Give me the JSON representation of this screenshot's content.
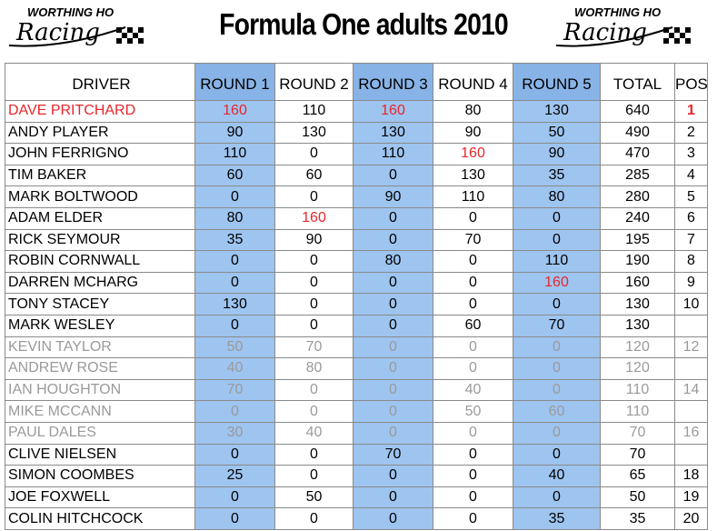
{
  "header": {
    "title": "Formula One adults 2010",
    "logo_top": "WORTHING HO",
    "logo_script": "Racing"
  },
  "table": {
    "columns": [
      "DRIVER",
      "ROUND 1",
      "ROUND 2",
      "ROUND 3",
      "ROUND 4",
      "ROUND 5",
      "TOTAL",
      "POS"
    ],
    "rows": [
      [
        "DAVE PRITCHARD",
        160,
        110,
        160,
        80,
        130,
        640,
        1
      ],
      [
        "ANDY PLAYER",
        90,
        130,
        130,
        90,
        50,
        490,
        2
      ],
      [
        "JOHN FERRIGNO",
        110,
        0,
        110,
        160,
        90,
        470,
        3
      ],
      [
        "TIM BAKER",
        60,
        60,
        0,
        130,
        35,
        285,
        4
      ],
      [
        "MARK BOLTWOOD",
        0,
        0,
        90,
        110,
        80,
        280,
        5
      ],
      [
        "ADAM ELDER",
        80,
        160,
        0,
        0,
        0,
        240,
        6
      ],
      [
        "RICK SEYMOUR",
        35,
        90,
        0,
        70,
        0,
        195,
        7
      ],
      [
        "ROBIN CORNWALL",
        0,
        0,
        80,
        0,
        110,
        190,
        8
      ],
      [
        "DARREN MCHARG",
        0,
        0,
        0,
        0,
        160,
        160,
        9
      ],
      [
        "TONY STACEY",
        130,
        0,
        0,
        0,
        0,
        130,
        10
      ],
      [
        "MARK WESLEY",
        0,
        0,
        0,
        60,
        70,
        130,
        null
      ],
      [
        "KEVIN TAYLOR",
        50,
        70,
        0,
        0,
        0,
        120,
        12
      ],
      [
        "ANDREW ROSE",
        40,
        80,
        0,
        0,
        0,
        120,
        null
      ],
      [
        "IAN HOUGHTON",
        70,
        0,
        0,
        40,
        0,
        110,
        14
      ],
      [
        "MIKE MCCANN",
        0,
        0,
        0,
        50,
        60,
        110,
        null
      ],
      [
        "PAUL DALES",
        30,
        40,
        0,
        0,
        0,
        70,
        16
      ],
      [
        "CLIVE NIELSEN",
        0,
        0,
        70,
        0,
        0,
        70,
        null
      ],
      [
        "SIMON COOMBES",
        25,
        0,
        0,
        0,
        40,
        65,
        18
      ],
      [
        "JOE FOXWELL",
        0,
        50,
        0,
        0,
        0,
        50,
        19
      ],
      [
        "COLIN HITCHCOCK",
        0,
        0,
        0,
        0,
        35,
        35,
        20
      ]
    ]
  }
}
